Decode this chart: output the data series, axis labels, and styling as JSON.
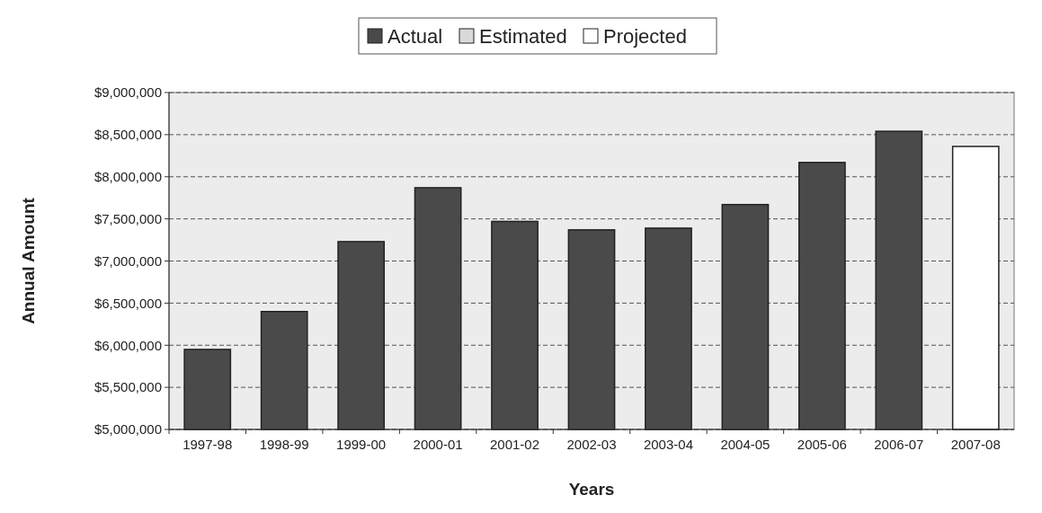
{
  "chart_data": {
    "type": "bar",
    "xlabel": "Years",
    "ylabel": "Annual Amount",
    "categories": [
      "1997-98",
      "1998-99",
      "1999-00",
      "2000-01",
      "2001-02",
      "2002-03",
      "2003-04",
      "2004-05",
      "2005-06",
      "2006-07",
      "2007-08"
    ],
    "series": [
      {
        "name": "Actual",
        "color": "#4a4a4a",
        "values": [
          5950000,
          6400000,
          7230000,
          7870000,
          7470000,
          7370000,
          7390000,
          7670000,
          8170000,
          8540000,
          null
        ]
      },
      {
        "name": "Estimated",
        "color": "#d9d9d9",
        "values": [
          null,
          null,
          null,
          null,
          null,
          null,
          null,
          null,
          null,
          null,
          null
        ]
      },
      {
        "name": "Projected",
        "color": "#ffffff",
        "values": [
          null,
          null,
          null,
          null,
          null,
          null,
          null,
          null,
          null,
          null,
          8360000
        ]
      }
    ],
    "ylim": [
      5000000,
      9000000
    ],
    "yticks": [
      {
        "value": 5000000,
        "label": "$5,000,000"
      },
      {
        "value": 5500000,
        "label": "$5,500,000"
      },
      {
        "value": 6000000,
        "label": "$6,000,000"
      },
      {
        "value": 6500000,
        "label": "$6,500,000"
      },
      {
        "value": 7000000,
        "label": "$7,000,000"
      },
      {
        "value": 7500000,
        "label": "$7,500,000"
      },
      {
        "value": 8000000,
        "label": "$8,000,000"
      },
      {
        "value": 8500000,
        "label": "$8,500,000"
      },
      {
        "value": 9000000,
        "label": "$9,000,000"
      }
    ],
    "grid": "y",
    "legend": "top"
  }
}
